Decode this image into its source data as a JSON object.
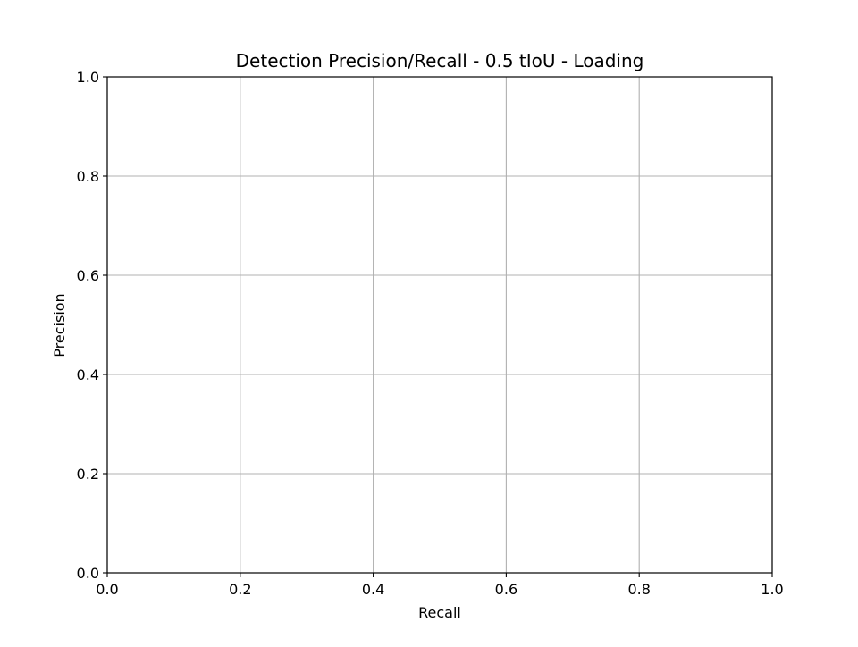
{
  "chart_data": {
    "type": "line",
    "title": "Detection Precision/Recall - 0.5 tIoU - Loading",
    "xlabel": "Recall",
    "ylabel": "Precision",
    "xlim": [
      0.0,
      1.0
    ],
    "ylim": [
      0.0,
      1.0
    ],
    "xticks": [
      0.0,
      0.2,
      0.4,
      0.6,
      0.8,
      1.0
    ],
    "yticks": [
      0.0,
      0.2,
      0.4,
      0.6,
      0.8,
      1.0
    ],
    "xtick_labels": [
      "0.0",
      "0.2",
      "0.4",
      "0.6",
      "0.8",
      "1.0"
    ],
    "ytick_labels": [
      "0.0",
      "0.2",
      "0.4",
      "0.6",
      "0.8",
      "1.0"
    ],
    "grid": true,
    "series": []
  },
  "colors": {
    "grid": "#b0b0b0",
    "axes": "#000000",
    "background": "#ffffff"
  }
}
